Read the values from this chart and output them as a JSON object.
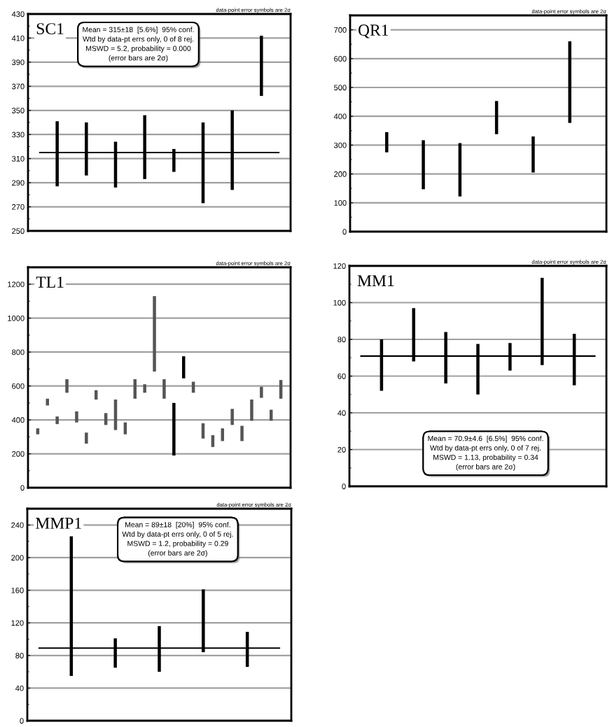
{
  "chart_data": [
    {
      "type": "bar",
      "title": "SC1",
      "categories": [
        null,
        null,
        null,
        null,
        null,
        null,
        null,
        null
      ],
      "base": [
        287,
        296,
        286,
        293,
        299,
        273,
        284,
        362
      ],
      "values": [
        54,
        44,
        38,
        53,
        19,
        67,
        66,
        50
      ],
      "color": "#000000",
      "ylim": [
        250,
        430
      ],
      "yticks": [
        250,
        270,
        290,
        310,
        330,
        350,
        370,
        390,
        410,
        430
      ],
      "grid": "y",
      "tick_labels": "y",
      "ref_lines": [
        {
          "axis": "y",
          "value": 315,
          "color": "#000000"
        }
      ],
      "annotations": [
        "data-point error symbols are 2σ",
        "Mean = 315±18  [5.6%]  95% conf.\nWtd by data-pt errs only, 0 of 8 rej.\nMSWD = 5.2, probability = 0.000\n(error bars are 2σ)"
      ]
    },
    {
      "type": "bar",
      "title": "QR1",
      "categories": [
        null,
        null,
        null,
        null,
        null,
        null
      ],
      "base": [
        275,
        147,
        122,
        338,
        205,
        377
      ],
      "values": [
        70,
        170,
        185,
        115,
        125,
        283
      ],
      "color": "#000000",
      "ylim": [
        0,
        750
      ],
      "yticks": [
        0,
        100,
        200,
        300,
        400,
        500,
        600,
        700
      ],
      "grid": "y",
      "tick_labels": "y",
      "annotations": [
        "data-point error symbols are 2σ"
      ]
    },
    {
      "type": "bar",
      "title": "TL1",
      "categories": [
        null,
        null,
        null,
        null,
        null,
        null,
        null,
        null,
        null,
        null,
        null,
        null,
        null,
        null,
        null,
        null,
        null,
        null,
        null,
        null,
        null,
        null,
        null,
        null,
        null,
        null
      ],
      "base": [
        315,
        485,
        375,
        560,
        385,
        260,
        520,
        370,
        340,
        315,
        525,
        560,
        685,
        525,
        190,
        645,
        560,
        290,
        240,
        275,
        370,
        275,
        395,
        530,
        395,
        525
      ],
      "values": [
        35,
        40,
        45,
        80,
        65,
        65,
        55,
        70,
        180,
        70,
        115,
        50,
        445,
        115,
        310,
        130,
        65,
        90,
        70,
        75,
        95,
        90,
        125,
        65,
        65,
        110
      ],
      "colors": [
        "#555555",
        "#555555",
        "#555555",
        "#555555",
        "#555555",
        "#555555",
        "#555555",
        "#555555",
        "#555555",
        "#555555",
        "#555555",
        "#555555",
        "#555555",
        "#555555",
        "#000000",
        "#000000",
        "#555555",
        "#555555",
        "#555555",
        "#555555",
        "#555555",
        "#555555",
        "#555555",
        "#555555",
        "#555555",
        "#555555"
      ],
      "ylim": [
        0,
        1300
      ],
      "yticks": [
        0,
        200,
        400,
        600,
        800,
        1000,
        1200
      ],
      "grid": "y",
      "tick_labels": "y",
      "annotations": [
        "data-point error symbols are 2σ"
      ]
    },
    {
      "type": "bar",
      "title": "MM1",
      "categories": [
        null,
        null,
        null,
        null,
        null,
        null,
        null
      ],
      "base": [
        52,
        68,
        56,
        50,
        63,
        66,
        55
      ],
      "values": [
        28,
        29,
        28,
        27.5,
        15,
        47.5,
        28
      ],
      "color": "#000000",
      "ylim": [
        0,
        120
      ],
      "yticks": [
        0,
        20,
        40,
        60,
        80,
        100,
        120
      ],
      "grid": "y",
      "tick_labels": "y",
      "ref_lines": [
        {
          "axis": "y",
          "value": 70.9,
          "color": "#000000"
        }
      ],
      "annotations": [
        "data-point error symbols are 2σ",
        "Mean = 70.9±4.6  [6.5%]  95% conf.\nWtd by data-pt errs only, 0 of 7 rej.\nMSWD = 1.13, probability = 0.34\n(error bars are 2σ)"
      ]
    },
    {
      "type": "bar",
      "title": "MMP1",
      "categories": [
        null,
        null,
        null,
        null,
        null
      ],
      "base": [
        55,
        65,
        60,
        84,
        66
      ],
      "values": [
        171,
        36,
        56,
        77,
        43
      ],
      "color": "#000000",
      "ylim": [
        0,
        260
      ],
      "yticks": [
        0,
        40,
        80,
        120,
        160,
        200,
        240
      ],
      "grid": "y",
      "tick_labels": "y",
      "ref_lines": [
        {
          "axis": "y",
          "value": 89,
          "color": "#000000"
        }
      ],
      "annotations": [
        "data-point error symbols are 2σ",
        "Mean = 89±18  [20%]  95% conf.\nWtd by data-pt errs only, 0 of 5 rej.\nMSWD = 1.2, probability = 0.29\n(error bars are 2σ)"
      ]
    }
  ]
}
